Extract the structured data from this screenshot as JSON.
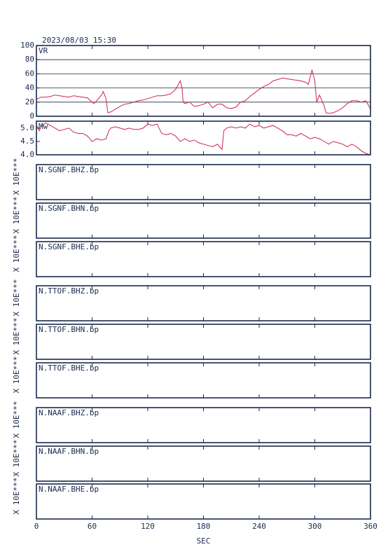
{
  "chart_data": [
    {
      "type": "line",
      "title": "2023/08/03 15:30",
      "label": "VR",
      "color": "#d0204a",
      "grid": true,
      "xlim": [
        0,
        360
      ],
      "xticks": [
        0,
        60,
        120,
        180,
        240,
        300,
        360
      ],
      "ylim": [
        0,
        100
      ],
      "yticks": [
        0,
        20,
        40,
        60,
        80,
        100
      ],
      "x": [
        0,
        5,
        10,
        15,
        20,
        25,
        30,
        35,
        40,
        45,
        50,
        55,
        60,
        62,
        65,
        70,
        72,
        75,
        77,
        80,
        85,
        90,
        95,
        100,
        105,
        110,
        115,
        120,
        125,
        130,
        135,
        140,
        145,
        150,
        155,
        157,
        158,
        160,
        165,
        170,
        175,
        180,
        185,
        190,
        195,
        200,
        205,
        210,
        215,
        220,
        225,
        230,
        235,
        240,
        245,
        250,
        255,
        260,
        265,
        270,
        275,
        280,
        285,
        290,
        293,
        297,
        300,
        302,
        305,
        310,
        312,
        315,
        320,
        325,
        330,
        335,
        340,
        345,
        350,
        355,
        358,
        360
      ],
      "values": [
        24,
        27,
        27,
        28,
        30,
        29,
        28,
        27,
        29,
        28,
        27,
        26,
        20,
        18,
        22,
        30,
        35,
        25,
        5,
        6,
        10,
        14,
        17,
        18,
        20,
        22,
        23,
        25,
        27,
        29,
        29,
        30,
        32,
        38,
        50,
        40,
        20,
        18,
        20,
        14,
        15,
        17,
        20,
        12,
        17,
        17,
        12,
        11,
        13,
        20,
        22,
        28,
        33,
        38,
        42,
        45,
        50,
        52,
        54,
        53,
        52,
        51,
        50,
        48,
        45,
        65,
        50,
        20,
        30,
        15,
        5,
        4,
        5,
        8,
        12,
        18,
        22,
        22,
        20,
        22,
        15,
        10
      ]
    },
    {
      "type": "line",
      "label": "Mw",
      "color": "#d0204a",
      "grid": false,
      "xlim": [
        0,
        360
      ],
      "xticks": [
        0,
        60,
        120,
        180,
        240,
        300,
        360
      ],
      "ylim": [
        4,
        5.26
      ],
      "yticks": [
        {
          "value": 4,
          "label": "4.0"
        },
        4.5,
        {
          "value": 5,
          "label": "5.0"
        }
      ],
      "x": [
        0,
        3,
        5,
        10,
        15,
        20,
        25,
        30,
        35,
        40,
        45,
        50,
        55,
        60,
        65,
        70,
        75,
        78,
        80,
        85,
        90,
        95,
        100,
        105,
        110,
        115,
        120,
        125,
        130,
        135,
        140,
        145,
        150,
        155,
        160,
        165,
        170,
        175,
        180,
        185,
        190,
        195,
        200,
        202,
        205,
        210,
        215,
        220,
        225,
        230,
        235,
        240,
        245,
        250,
        255,
        260,
        265,
        270,
        275,
        280,
        285,
        290,
        295,
        300,
        305,
        310,
        315,
        320,
        325,
        330,
        335,
        340,
        345,
        350,
        355,
        360
      ],
      "values": [
        5.1,
        4.9,
        5.05,
        5.2,
        5.1,
        5.0,
        4.9,
        4.95,
        5.0,
        4.85,
        4.8,
        4.8,
        4.7,
        4.5,
        4.6,
        4.55,
        4.6,
        4.9,
        5.0,
        5.05,
        5.0,
        4.95,
        5.0,
        4.95,
        4.95,
        5.0,
        5.15,
        5.1,
        5.15,
        4.8,
        4.75,
        4.8,
        4.7,
        4.5,
        4.6,
        4.5,
        4.55,
        4.45,
        4.4,
        4.35,
        4.3,
        4.4,
        4.2,
        4.9,
        5.0,
        5.05,
        5.0,
        5.05,
        5.0,
        5.15,
        5.05,
        5.1,
        5.0,
        5.05,
        5.1,
        5.0,
        4.9,
        4.75,
        4.75,
        4.7,
        4.8,
        4.7,
        4.6,
        4.65,
        4.6,
        4.5,
        4.4,
        4.5,
        4.45,
        4.4,
        4.3,
        4.4,
        4.3,
        4.15,
        4.05,
        4.0
      ]
    },
    {
      "type": "line",
      "label": "N.SGNF.BHZ.bp",
      "ylabel": "X 10E***",
      "xlim": [
        0,
        360
      ],
      "xticks": [
        0,
        60,
        120,
        180,
        240,
        300,
        360
      ]
    },
    {
      "type": "line",
      "label": "N.SGNF.BHN.bp",
      "ylabel": "X 10E***",
      "xlim": [
        0,
        360
      ],
      "xticks": [
        0,
        60,
        120,
        180,
        240,
        300,
        360
      ]
    },
    {
      "type": "line",
      "label": "N.SGNF.BHE.bp",
      "ylabel": "X 10E***",
      "xlim": [
        0,
        360
      ],
      "xticks": [
        0,
        60,
        120,
        180,
        240,
        300,
        360
      ]
    },
    {
      "type": "line",
      "label": "N.TTOF.BHZ.bp",
      "ylabel": "X 10E***",
      "xlim": [
        0,
        360
      ],
      "xticks": [
        0,
        60,
        120,
        180,
        240,
        300,
        360
      ]
    },
    {
      "type": "line",
      "label": "N.TTOF.BHN.bp",
      "ylabel": "X 10E***",
      "xlim": [
        0,
        360
      ],
      "xticks": [
        0,
        60,
        120,
        180,
        240,
        300,
        360
      ]
    },
    {
      "type": "line",
      "label": "N.TTOF.BHE.bp",
      "ylabel": "X 10E***",
      "xlim": [
        0,
        360
      ],
      "xticks": [
        0,
        60,
        120,
        180,
        240,
        300,
        360
      ]
    },
    {
      "type": "line",
      "label": "N.NAAF.BHZ.bp",
      "ylabel": "X 10E***",
      "xlim": [
        0,
        360
      ],
      "xticks": [
        0,
        60,
        120,
        180,
        240,
        300,
        360
      ]
    },
    {
      "type": "line",
      "label": "N.NAAF.BHN.bp",
      "ylabel": "X 10E***",
      "xlim": [
        0,
        360
      ],
      "xticks": [
        0,
        60,
        120,
        180,
        240,
        300,
        360
      ]
    },
    {
      "type": "line",
      "label": "N.NAAF.BHE.bp",
      "ylabel": "X 10E***",
      "xlim": [
        0,
        360
      ],
      "xticks": [
        0,
        60,
        120,
        180,
        240,
        300,
        360
      ],
      "xlabel": "SEC"
    }
  ]
}
